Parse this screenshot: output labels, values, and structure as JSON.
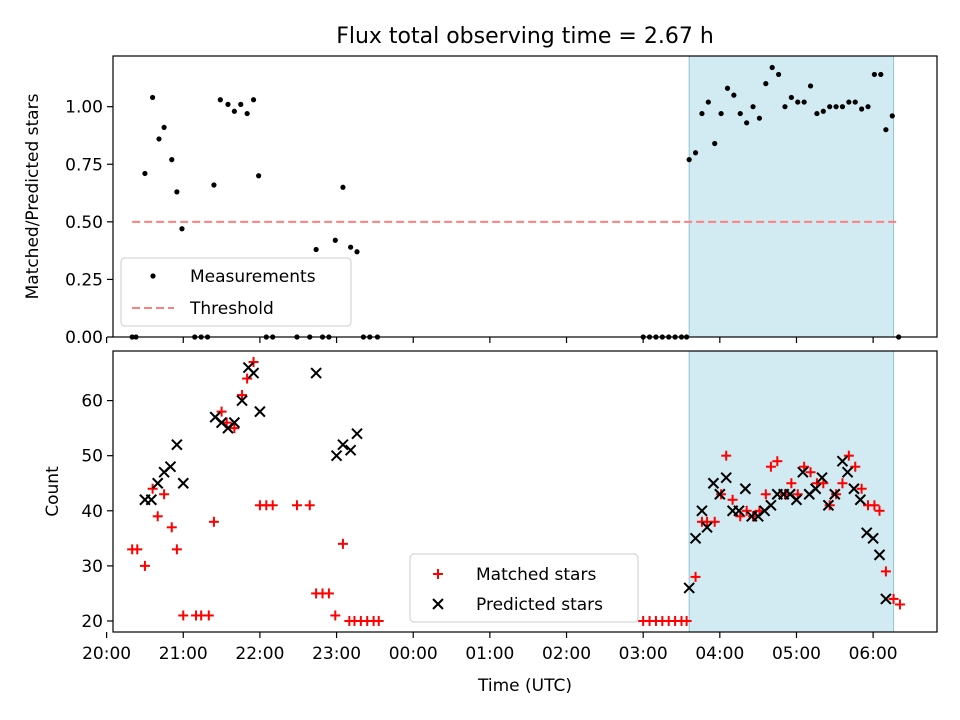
{
  "title": "Flux total observing time = 2.67 h",
  "chart_data": [
    {
      "type": "scatter",
      "panel": "top",
      "ylabel": "Matched/Predicted stars",
      "ylim": [
        0,
        1.22
      ],
      "yticks": [
        "0.00",
        "0.25",
        "0.50",
        "0.75",
        "1.00"
      ],
      "ytick_values": [
        0,
        0.25,
        0.5,
        0.75,
        1.0
      ],
      "legend": {
        "position": "lower-left",
        "items": [
          "Measurements",
          "Threshold"
        ]
      },
      "highlight_span": {
        "from": "03:36",
        "to": "06:16",
        "color": "#add8e6"
      },
      "threshold": {
        "name": "Threshold",
        "value": 0.5,
        "from": "20:20",
        "to": "06:20",
        "color": "#ff7f7f"
      },
      "series": [
        {
          "name": "Measurements",
          "color": "#000000",
          "points": [
            [
              "20:20",
              0
            ],
            [
              "20:23",
              0
            ],
            [
              "20:30",
              0.71
            ],
            [
              "20:36",
              1.04
            ],
            [
              "20:41",
              0.86
            ],
            [
              "20:45",
              0.91
            ],
            [
              "20:51",
              0.77
            ],
            [
              "20:55",
              0.63
            ],
            [
              "20:59",
              0.47
            ],
            [
              "21:09",
              0
            ],
            [
              "21:14",
              0
            ],
            [
              "21:19",
              0
            ],
            [
              "21:24",
              0.66
            ],
            [
              "21:29",
              1.03
            ],
            [
              "21:35",
              1.01
            ],
            [
              "21:40",
              0.98
            ],
            [
              "21:45",
              1.01
            ],
            [
              "21:50",
              0.97
            ],
            [
              "21:55",
              1.03
            ],
            [
              "21:59",
              0.7
            ],
            [
              "22:05",
              0
            ],
            [
              "22:10",
              0
            ],
            [
              "22:29",
              0
            ],
            [
              "22:39",
              0
            ],
            [
              "22:44",
              0.38
            ],
            [
              "22:49",
              0
            ],
            [
              "22:54",
              0
            ],
            [
              "22:59",
              0.42
            ],
            [
              "23:05",
              0.65
            ],
            [
              "23:11",
              0.39
            ],
            [
              "23:16",
              0.37
            ],
            [
              "23:21",
              0
            ],
            [
              "23:26",
              0
            ],
            [
              "23:32",
              0
            ],
            [
              "03:00",
              0
            ],
            [
              "03:05",
              0
            ],
            [
              "03:10",
              0
            ],
            [
              "03:15",
              0
            ],
            [
              "03:20",
              0
            ],
            [
              "03:25",
              0
            ],
            [
              "03:30",
              0
            ],
            [
              "03:34",
              0
            ],
            [
              "03:36",
              0.77
            ],
            [
              "03:41",
              0.8
            ],
            [
              "03:46",
              0.97
            ],
            [
              "03:51",
              1.02
            ],
            [
              "03:56",
              0.84
            ],
            [
              "04:01",
              0.97
            ],
            [
              "04:06",
              1.08
            ],
            [
              "04:11",
              1.05
            ],
            [
              "04:16",
              0.97
            ],
            [
              "04:21",
              0.93
            ],
            [
              "04:26",
              1.0
            ],
            [
              "04:31",
              0.95
            ],
            [
              "04:36",
              1.1
            ],
            [
              "04:41",
              1.17
            ],
            [
              "04:46",
              1.14
            ],
            [
              "04:51",
              1.0
            ],
            [
              "04:56",
              1.04
            ],
            [
              "05:01",
              1.02
            ],
            [
              "05:06",
              1.02
            ],
            [
              "05:11",
              1.09
            ],
            [
              "05:16",
              0.97
            ],
            [
              "05:21",
              0.98
            ],
            [
              "05:26",
              1.0
            ],
            [
              "05:31",
              1.0
            ],
            [
              "05:36",
              1.0
            ],
            [
              "05:41",
              1.02
            ],
            [
              "05:46",
              1.02
            ],
            [
              "05:51",
              0.99
            ],
            [
              "05:56",
              1.0
            ],
            [
              "06:01",
              1.14
            ],
            [
              "06:06",
              1.14
            ],
            [
              "06:10",
              0.9
            ],
            [
              "06:15",
              0.96
            ],
            [
              "06:20",
              0
            ]
          ]
        }
      ]
    },
    {
      "type": "scatter",
      "panel": "bottom",
      "xlabel": "Time (UTC)",
      "ylabel": "Count",
      "ylim": [
        18,
        69
      ],
      "yticks": [
        "20",
        "30",
        "40",
        "50",
        "60"
      ],
      "ytick_values": [
        20,
        30,
        40,
        50,
        60
      ],
      "xticks": [
        "20:00",
        "21:00",
        "22:00",
        "23:00",
        "00:00",
        "01:00",
        "02:00",
        "03:00",
        "04:00",
        "05:00",
        "06:00"
      ],
      "legend": {
        "position": "lower-center",
        "items": [
          "Matched stars",
          "Predicted stars"
        ]
      },
      "highlight_span": {
        "from": "03:36",
        "to": "06:16",
        "color": "#add8e6"
      },
      "series": [
        {
          "name": "Matched stars",
          "marker": "plus",
          "color": "#ff0000",
          "points": [
            [
              "20:20",
              33
            ],
            [
              "20:24",
              33
            ],
            [
              "20:30",
              30
            ],
            [
              "20:36",
              44
            ],
            [
              "20:40",
              39
            ],
            [
              "20:45",
              43
            ],
            [
              "20:51",
              37
            ],
            [
              "20:55",
              33
            ],
            [
              "21:00",
              21
            ],
            [
              "21:10",
              21
            ],
            [
              "21:14",
              21
            ],
            [
              "21:20",
              21
            ],
            [
              "21:24",
              38
            ],
            [
              "21:30",
              58
            ],
            [
              "21:34",
              56
            ],
            [
              "21:40",
              55
            ],
            [
              "21:46",
              61
            ],
            [
              "21:50",
              64
            ],
            [
              "21:55",
              67
            ],
            [
              "22:00",
              41
            ],
            [
              "22:05",
              41
            ],
            [
              "22:10",
              41
            ],
            [
              "22:29",
              41
            ],
            [
              "22:39",
              41
            ],
            [
              "22:44",
              25
            ],
            [
              "22:49",
              25
            ],
            [
              "22:54",
              25
            ],
            [
              "22:59",
              21
            ],
            [
              "23:05",
              34
            ],
            [
              "23:10",
              20
            ],
            [
              "23:14",
              20
            ],
            [
              "23:19",
              20
            ],
            [
              "23:24",
              20
            ],
            [
              "23:29",
              20
            ],
            [
              "23:33",
              20
            ],
            [
              "03:00",
              20
            ],
            [
              "03:05",
              20
            ],
            [
              "03:10",
              20
            ],
            [
              "03:15",
              20
            ],
            [
              "03:20",
              20
            ],
            [
              "03:25",
              20
            ],
            [
              "03:30",
              20
            ],
            [
              "03:34",
              20
            ],
            [
              "03:41",
              28
            ],
            [
              "03:46",
              38
            ],
            [
              "03:50",
              38
            ],
            [
              "03:56",
              38
            ],
            [
              "04:01",
              43
            ],
            [
              "04:05",
              50
            ],
            [
              "04:10",
              42
            ],
            [
              "04:16",
              39
            ],
            [
              "04:21",
              40
            ],
            [
              "04:26",
              39
            ],
            [
              "04:31",
              40
            ],
            [
              "04:36",
              43
            ],
            [
              "04:40",
              48
            ],
            [
              "04:45",
              49
            ],
            [
              "04:51",
              43
            ],
            [
              "04:56",
              45
            ],
            [
              "05:01",
              43
            ],
            [
              "05:06",
              48
            ],
            [
              "05:11",
              47
            ],
            [
              "05:16",
              45
            ],
            [
              "05:21",
              45
            ],
            [
              "05:26",
              41
            ],
            [
              "05:31",
              43
            ],
            [
              "05:36",
              45
            ],
            [
              "05:41",
              50
            ],
            [
              "05:46",
              48
            ],
            [
              "05:51",
              44
            ],
            [
              "05:56",
              41
            ],
            [
              "06:01",
              41
            ],
            [
              "06:05",
              40
            ],
            [
              "06:10",
              29
            ],
            [
              "06:16",
              24
            ],
            [
              "06:21",
              23
            ]
          ]
        },
        {
          "name": "Predicted stars",
          "marker": "x",
          "color": "#000000",
          "points": [
            [
              "20:30",
              42
            ],
            [
              "20:35",
              42
            ],
            [
              "20:40",
              45
            ],
            [
              "20:45",
              47
            ],
            [
              "20:50",
              48
            ],
            [
              "20:55",
              52
            ],
            [
              "21:00",
              45
            ],
            [
              "21:25",
              57
            ],
            [
              "21:30",
              56
            ],
            [
              "21:35",
              55
            ],
            [
              "21:40",
              56
            ],
            [
              "21:46",
              60
            ],
            [
              "21:51",
              66
            ],
            [
              "21:55",
              65
            ],
            [
              "22:00",
              58
            ],
            [
              "22:44",
              65
            ],
            [
              "23:00",
              50
            ],
            [
              "23:05",
              52
            ],
            [
              "23:11",
              51
            ],
            [
              "23:16",
              54
            ],
            [
              "03:36",
              26
            ],
            [
              "03:41",
              35
            ],
            [
              "03:46",
              40
            ],
            [
              "03:50",
              37
            ],
            [
              "03:55",
              45
            ],
            [
              "04:00",
              43
            ],
            [
              "04:05",
              46
            ],
            [
              "04:10",
              40
            ],
            [
              "04:15",
              40
            ],
            [
              "04:20",
              44
            ],
            [
              "04:25",
              39
            ],
            [
              "04:30",
              39
            ],
            [
              "04:35",
              40
            ],
            [
              "04:40",
              41
            ],
            [
              "04:45",
              43
            ],
            [
              "04:50",
              43
            ],
            [
              "04:55",
              43
            ],
            [
              "05:00",
              42
            ],
            [
              "05:05",
              47
            ],
            [
              "05:10",
              43
            ],
            [
              "05:15",
              44
            ],
            [
              "05:20",
              46
            ],
            [
              "05:25",
              41
            ],
            [
              "05:30",
              43
            ],
            [
              "05:36",
              49
            ],
            [
              "05:40",
              47
            ],
            [
              "05:45",
              44
            ],
            [
              "05:50",
              42
            ],
            [
              "05:55",
              36
            ],
            [
              "06:00",
              35
            ],
            [
              "06:05",
              32
            ],
            [
              "06:10",
              24
            ]
          ]
        }
      ]
    }
  ]
}
